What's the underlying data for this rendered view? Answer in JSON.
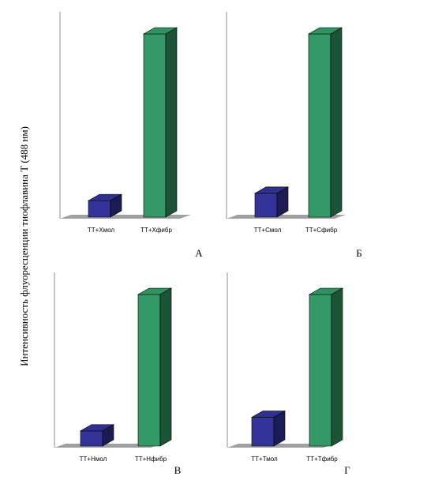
{
  "y_axis_label": "Интенсивность флуоресценции тиофлавина Т (488 нм)",
  "colors": {
    "mol": "#333399",
    "fibr": "#339966"
  },
  "chart_data": [
    {
      "type": "bar",
      "panel_letter": "А",
      "categories": [
        "ТТ+Хмол",
        "ТТ+Хфибр"
      ],
      "values": [
        9,
        100
      ],
      "ylim": [
        0,
        100
      ],
      "grid": false
    },
    {
      "type": "bar",
      "panel_letter": "Б",
      "categories": [
        "ТТ+Смол",
        "ТТ+Сфибр"
      ],
      "values": [
        13,
        100
      ],
      "ylim": [
        0,
        100
      ],
      "grid": false
    },
    {
      "type": "bar",
      "panel_letter": "В",
      "categories": [
        "ТТ+Нмол",
        "ТТ+Нфибр"
      ],
      "values": [
        10,
        100
      ],
      "ylim": [
        0,
        100
      ],
      "grid": false
    },
    {
      "type": "bar",
      "panel_letter": "Г",
      "categories": [
        "ТТ+Тмол",
        "ТТ+Тфибр"
      ],
      "values": [
        19,
        100
      ],
      "ylim": [
        0,
        100
      ],
      "grid": false
    }
  ]
}
